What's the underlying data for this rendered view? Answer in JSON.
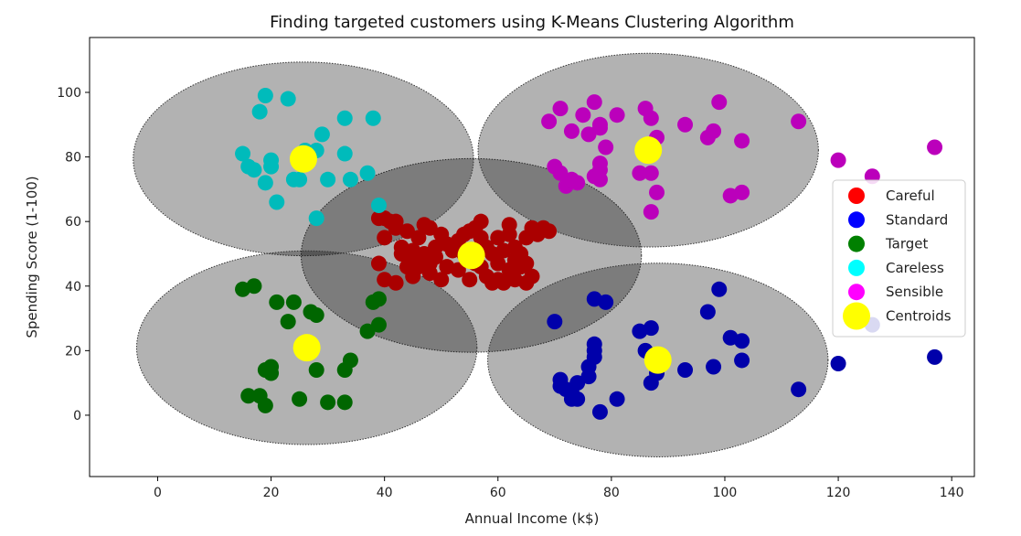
{
  "chart_data": {
    "type": "scatter",
    "title": "Finding targeted customers using K-Means Clustering Algorithm",
    "xlabel": "Annual Income (k$)",
    "ylabel": "Spending Score (1-100)",
    "xlim": [
      -12,
      144
    ],
    "ylim": [
      -19,
      117
    ],
    "xticks": [
      0,
      20,
      40,
      60,
      80,
      100,
      120,
      140
    ],
    "yticks": [
      0,
      20,
      40,
      60,
      80,
      100
    ],
    "grid": false,
    "legend_position": "right",
    "series": [
      {
        "name": "Careful",
        "legend_color": "#ff0000",
        "color": "#aa0000",
        "points": [
          [
            39,
            61
          ],
          [
            40,
            55
          ],
          [
            41,
            60
          ],
          [
            42,
            60
          ],
          [
            43,
            52
          ],
          [
            44,
            57
          ],
          [
            45,
            51
          ],
          [
            46,
            55
          ],
          [
            47,
            59
          ],
          [
            48,
            58
          ],
          [
            49,
            52
          ],
          [
            50,
            56
          ],
          [
            51,
            53
          ],
          [
            52,
            51
          ],
          [
            39,
            47
          ],
          [
            40,
            42
          ],
          [
            42,
            41
          ],
          [
            43,
            50
          ],
          [
            44,
            46
          ],
          [
            45,
            48
          ],
          [
            46,
            46
          ],
          [
            47,
            50
          ],
          [
            48,
            47
          ],
          [
            49,
            49
          ],
          [
            50,
            42
          ],
          [
            53,
            54
          ],
          [
            54,
            56
          ],
          [
            54,
            50
          ],
          [
            55,
            57
          ],
          [
            56,
            58
          ],
          [
            57,
            55
          ],
          [
            57,
            60
          ],
          [
            58,
            52
          ],
          [
            59,
            50
          ],
          [
            60,
            55
          ],
          [
            60,
            47
          ],
          [
            61,
            51
          ],
          [
            62,
            59
          ],
          [
            62,
            56
          ],
          [
            63,
            52
          ],
          [
            63,
            48
          ],
          [
            64,
            50
          ],
          [
            65,
            55
          ],
          [
            65,
            47
          ],
          [
            66,
            58
          ],
          [
            67,
            56
          ],
          [
            68,
            58
          ],
          [
            69,
            57
          ],
          [
            57,
            46
          ],
          [
            58,
            43
          ],
          [
            59,
            41
          ],
          [
            60,
            42
          ],
          [
            61,
            41
          ],
          [
            62,
            45
          ],
          [
            63,
            42
          ],
          [
            64,
            46
          ],
          [
            65,
            41
          ],
          [
            66,
            43
          ],
          [
            53,
            45
          ],
          [
            55,
            42
          ],
          [
            56,
            47
          ],
          [
            40,
            61
          ],
          [
            42,
            58
          ],
          [
            51,
            46
          ],
          [
            48,
            44
          ],
          [
            45,
            43
          ]
        ]
      },
      {
        "name": "Standard",
        "legend_color": "#0000ff",
        "color": "#0000aa",
        "points": [
          [
            70,
            29
          ],
          [
            71,
            11
          ],
          [
            71,
            9
          ],
          [
            72,
            8
          ],
          [
            73,
            5
          ],
          [
            73,
            7
          ],
          [
            74,
            10
          ],
          [
            74,
            5
          ],
          [
            76,
            12
          ],
          [
            76,
            15
          ],
          [
            77,
            20
          ],
          [
            77,
            22
          ],
          [
            77,
            18
          ],
          [
            78,
            1
          ],
          [
            79,
            35
          ],
          [
            77,
            36
          ],
          [
            81,
            5
          ],
          [
            85,
            26
          ],
          [
            86,
            20
          ],
          [
            87,
            27
          ],
          [
            87,
            10
          ],
          [
            88,
            13
          ],
          [
            88,
            15
          ],
          [
            93,
            14
          ],
          [
            97,
            32
          ],
          [
            98,
            15
          ],
          [
            99,
            39
          ],
          [
            101,
            24
          ],
          [
            103,
            23
          ],
          [
            103,
            17
          ],
          [
            113,
            8
          ],
          [
            120,
            16
          ],
          [
            126,
            28
          ],
          [
            137,
            18
          ]
        ]
      },
      {
        "name": "Target",
        "legend_color": "#008000",
        "color": "#006600",
        "points": [
          [
            15,
            39
          ],
          [
            16,
            6
          ],
          [
            17,
            40
          ],
          [
            18,
            6
          ],
          [
            19,
            3
          ],
          [
            19,
            14
          ],
          [
            20,
            15
          ],
          [
            20,
            13
          ],
          [
            21,
            35
          ],
          [
            23,
            29
          ],
          [
            24,
            35
          ],
          [
            25,
            5
          ],
          [
            27,
            32
          ],
          [
            28,
            14
          ],
          [
            28,
            31
          ],
          [
            30,
            4
          ],
          [
            33,
            4
          ],
          [
            33,
            14
          ],
          [
            34,
            17
          ],
          [
            37,
            26
          ],
          [
            38,
            35
          ],
          [
            39,
            36
          ],
          [
            39,
            28
          ]
        ]
      },
      {
        "name": "Careless",
        "legend_color": "#00ffff",
        "color": "#00bbbb",
        "points": [
          [
            15,
            81
          ],
          [
            16,
            77
          ],
          [
            17,
            76
          ],
          [
            18,
            94
          ],
          [
            19,
            72
          ],
          [
            19,
            99
          ],
          [
            20,
            77
          ],
          [
            20,
            79
          ],
          [
            21,
            66
          ],
          [
            23,
            98
          ],
          [
            24,
            73
          ],
          [
            25,
            73
          ],
          [
            26,
            82
          ],
          [
            28,
            61
          ],
          [
            28,
            82
          ],
          [
            29,
            87
          ],
          [
            30,
            73
          ],
          [
            33,
            81
          ],
          [
            33,
            92
          ],
          [
            34,
            73
          ],
          [
            37,
            75
          ],
          [
            38,
            92
          ],
          [
            39,
            65
          ]
        ]
      },
      {
        "name": "Sensible",
        "legend_color": "#ff00ff",
        "color": "#bb00bb",
        "points": [
          [
            69,
            91
          ],
          [
            70,
            77
          ],
          [
            71,
            95
          ],
          [
            71,
            75
          ],
          [
            72,
            71
          ],
          [
            73,
            88
          ],
          [
            73,
            73
          ],
          [
            74,
            72
          ],
          [
            75,
            93
          ],
          [
            76,
            87
          ],
          [
            77,
            97
          ],
          [
            77,
            74
          ],
          [
            78,
            90
          ],
          [
            78,
            76
          ],
          [
            78,
            89
          ],
          [
            78,
            78
          ],
          [
            78,
            73
          ],
          [
            79,
            83
          ],
          [
            81,
            93
          ],
          [
            85,
            75
          ],
          [
            86,
            95
          ],
          [
            87,
            75
          ],
          [
            87,
            92
          ],
          [
            87,
            63
          ],
          [
            88,
            86
          ],
          [
            88,
            69
          ],
          [
            93,
            90
          ],
          [
            97,
            86
          ],
          [
            98,
            88
          ],
          [
            99,
            97
          ],
          [
            101,
            68
          ],
          [
            103,
            85
          ],
          [
            103,
            69
          ],
          [
            113,
            91
          ],
          [
            120,
            79
          ],
          [
            126,
            74
          ],
          [
            137,
            83
          ]
        ]
      }
    ],
    "centroids": {
      "name": "Centroids",
      "color": "#ffff00",
      "points": [
        [
          55.3,
          49.5
        ],
        [
          86.5,
          82.1
        ],
        [
          25.7,
          79.4
        ],
        [
          26.3,
          20.9
        ],
        [
          88.2,
          17.1
        ]
      ]
    },
    "regions": [
      {
        "cx": 55.3,
        "cy": 49.5,
        "rx": 30,
        "ry": 30
      },
      {
        "cx": 86.5,
        "cy": 82.1,
        "rx": 30,
        "ry": 30
      },
      {
        "cx": 25.7,
        "cy": 79.4,
        "rx": 30,
        "ry": 30
      },
      {
        "cx": 26.3,
        "cy": 20.9,
        "rx": 30,
        "ry": 30
      },
      {
        "cx": 88.2,
        "cy": 17.1,
        "rx": 30,
        "ry": 30
      }
    ]
  }
}
